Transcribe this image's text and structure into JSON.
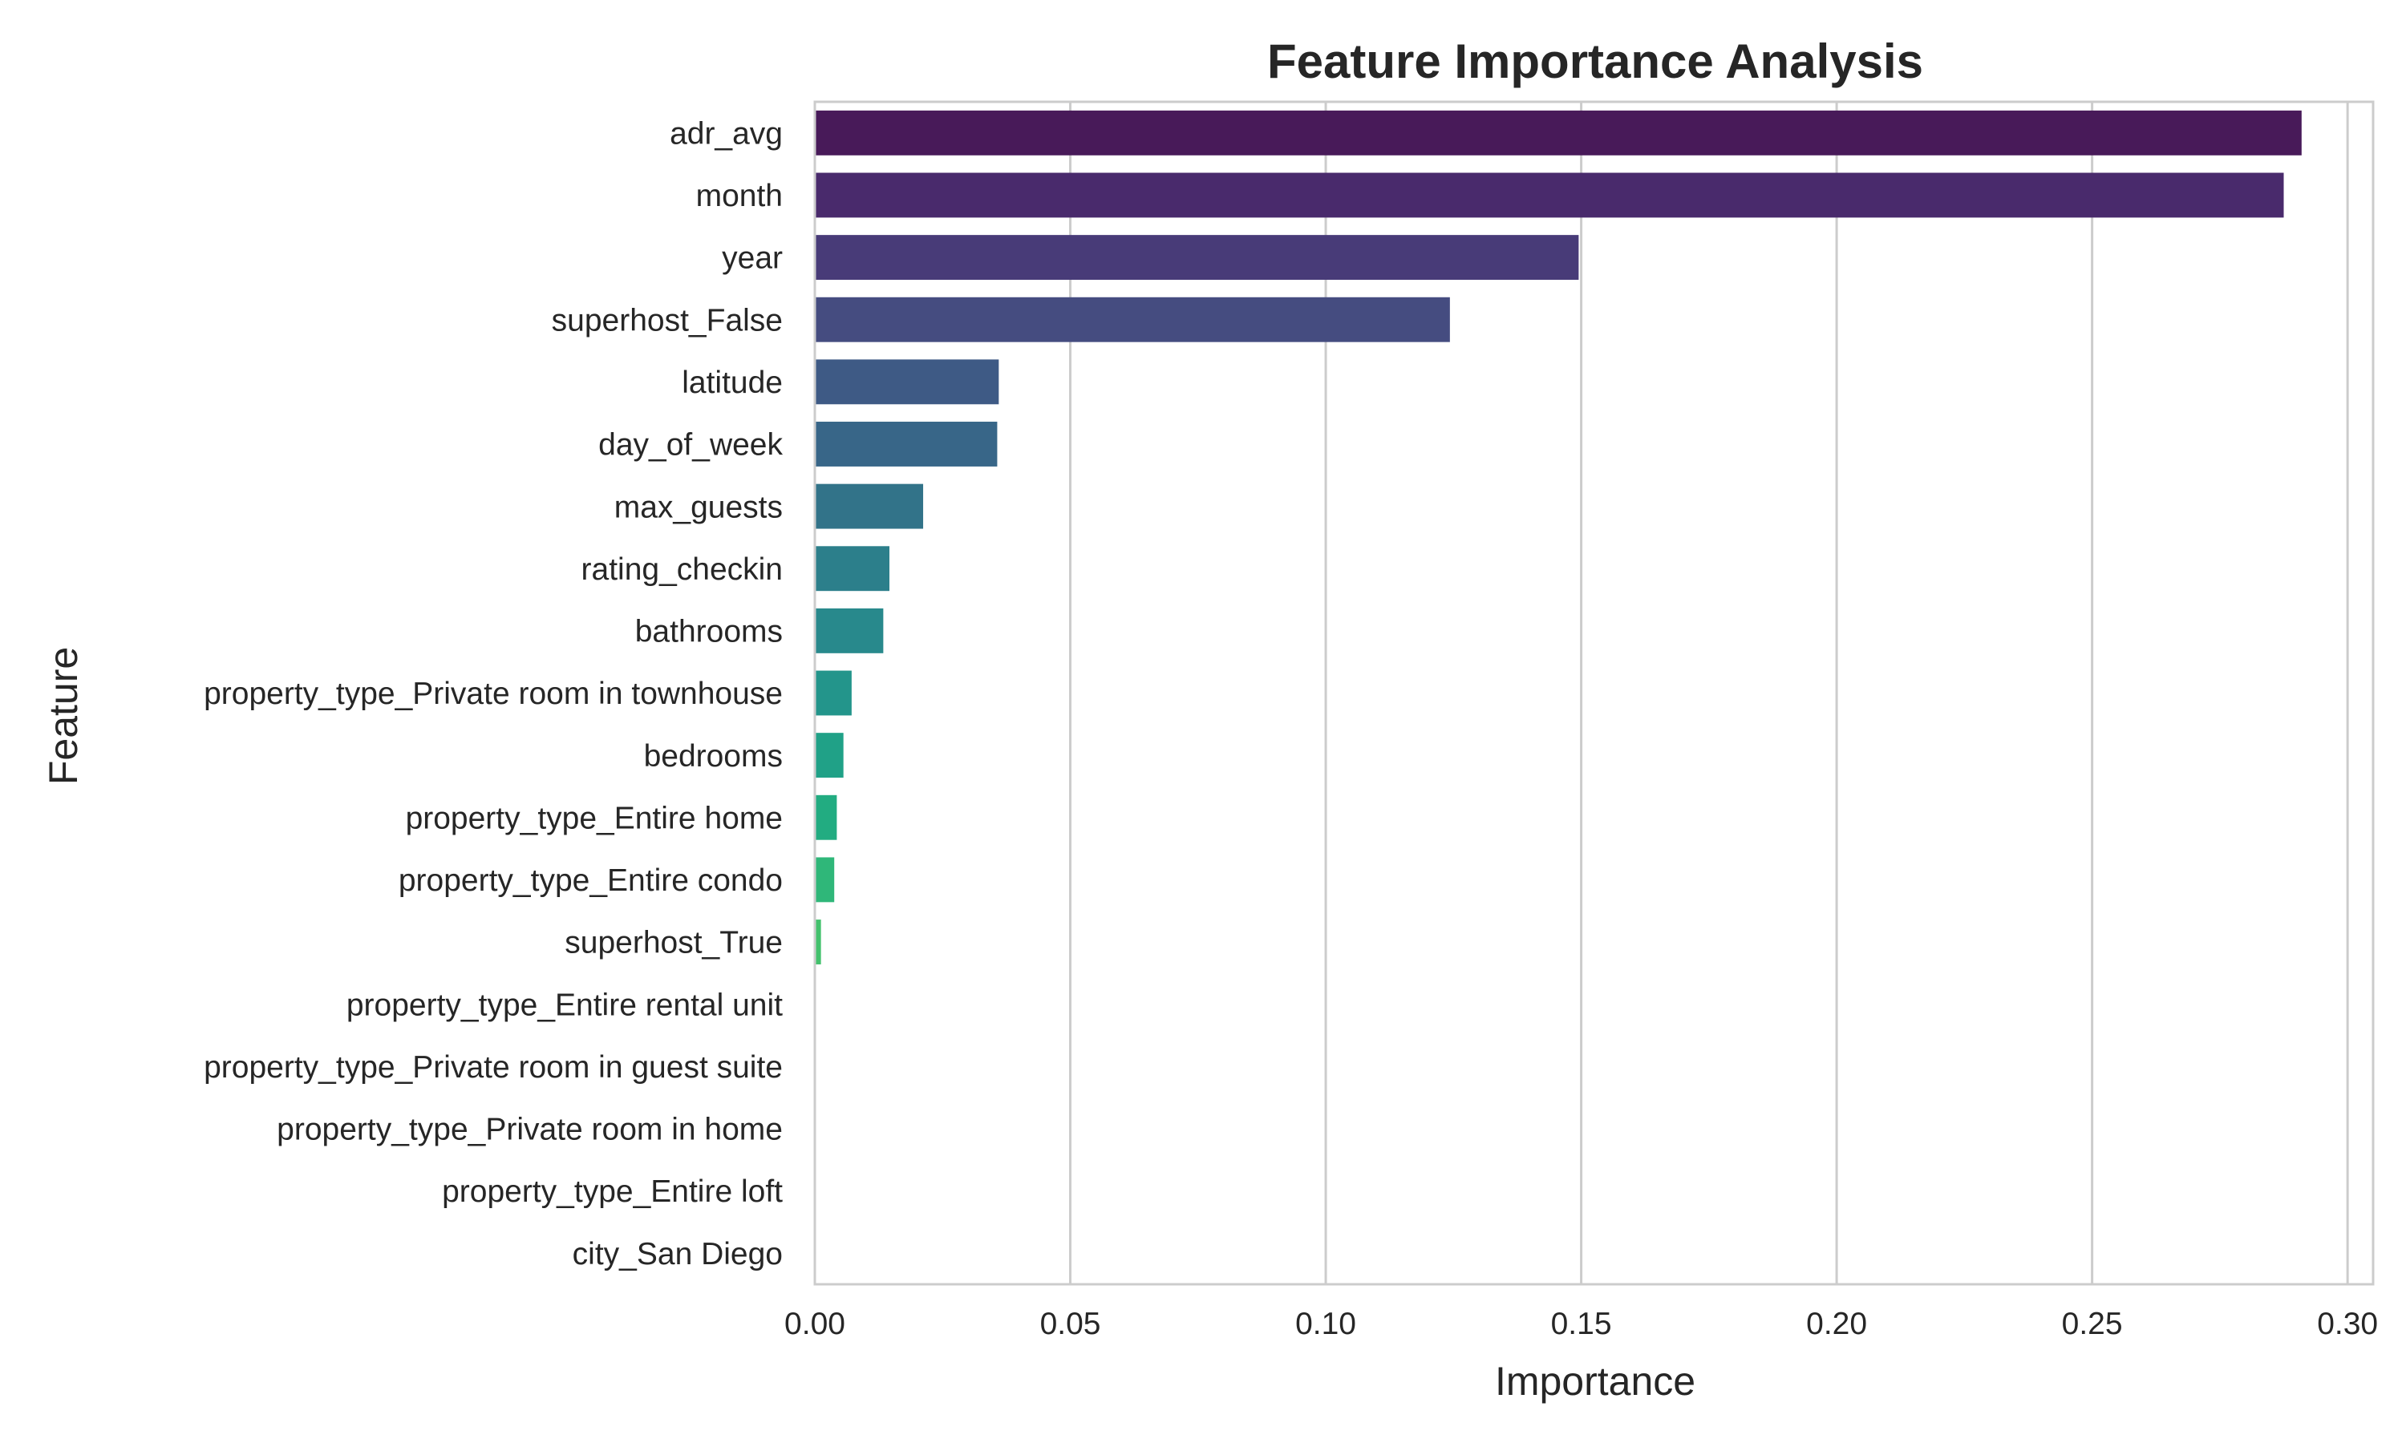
{
  "chart_data": {
    "type": "bar",
    "orientation": "horizontal",
    "title": "Feature Importance Analysis",
    "xlabel": "Importance",
    "ylabel": "Feature",
    "xlim": [
      0,
      0.305
    ],
    "xticks": [
      "0.00",
      "0.05",
      "0.10",
      "0.15",
      "0.20",
      "0.25",
      "0.30"
    ],
    "grid": "vertical",
    "categories": [
      "adr_avg",
      "month",
      "year",
      "superhost_False",
      "latitude",
      "day_of_week",
      "max_guests",
      "rating_checkin",
      "bathrooms",
      "property_type_Private room in townhouse",
      "bedrooms",
      "property_type_Entire home",
      "property_type_Entire condo",
      "superhost_True",
      "property_type_Entire rental unit",
      "property_type_Private room in guest suite",
      "property_type_Private room in home",
      "property_type_Entire loft",
      "city_San Diego"
    ],
    "values": [
      0.291,
      0.2875,
      0.1495,
      0.1243,
      0.036,
      0.0357,
      0.0212,
      0.0146,
      0.0134,
      0.0072,
      0.0056,
      0.0043,
      0.0038,
      0.0012,
      0.0,
      0.0,
      0.0,
      0.0,
      0.0
    ],
    "colors": [
      "#481a59",
      "#492a6c",
      "#483b78",
      "#454c80",
      "#3e5a85",
      "#386688",
      "#327389",
      "#2c7f8b",
      "#28898c",
      "#23958b",
      "#20a187",
      "#22ac81",
      "#2fb779",
      "#43c16d",
      "#5bc962",
      "#74d255",
      "#92d944",
      "#b0de35",
      "#cfe22a"
    ]
  }
}
